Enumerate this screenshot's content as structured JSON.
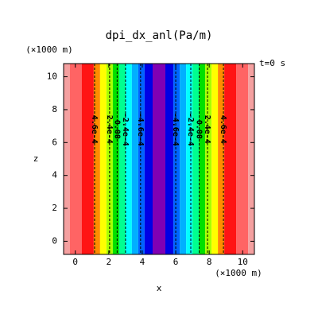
{
  "chart_data": {
    "type": "contour",
    "title": "dpi_dx_anl(Pa/m)",
    "x_label": "x",
    "y_label": "z",
    "x_unit": "(×1000 m)",
    "y_unit": "(×1000 m)",
    "time_label": "t=0 s",
    "xlim": [
      -0.7,
      10.7
    ],
    "ylim": [
      -0.8,
      10.8
    ],
    "xticks": [
      0,
      2,
      4,
      6,
      8,
      10
    ],
    "yticks": [
      0,
      2,
      4,
      6,
      8,
      10
    ],
    "bands": [
      {
        "x0": -0.7,
        "x1": -0.33,
        "color": "#f4a0a0"
      },
      {
        "x0": -0.33,
        "x1": 0.38,
        "color": "#ff6464"
      },
      {
        "x0": 0.38,
        "x1": 1.1,
        "color": "#ff1414"
      },
      {
        "x0": 1.1,
        "x1": 1.48,
        "color": "#ff8c00"
      },
      {
        "x0": 1.48,
        "x1": 1.86,
        "color": "#ffff00"
      },
      {
        "x0": 1.86,
        "x1": 2.24,
        "color": "#a8ff00"
      },
      {
        "x0": 2.24,
        "x1": 2.62,
        "color": "#00e000"
      },
      {
        "x0": 2.62,
        "x1": 3.0,
        "color": "#00ff90"
      },
      {
        "x0": 3.0,
        "x1": 3.38,
        "color": "#00ffff"
      },
      {
        "x0": 3.38,
        "x1": 3.76,
        "color": "#00b0ff"
      },
      {
        "x0": 3.76,
        "x1": 4.14,
        "color": "#0064ff"
      },
      {
        "x0": 4.14,
        "x1": 4.62,
        "color": "#0000e6"
      },
      {
        "x0": 4.62,
        "x1": 5.38,
        "color": "#8000b4"
      },
      {
        "x0": 5.38,
        "x1": 5.86,
        "color": "#0000e6"
      },
      {
        "x0": 5.86,
        "x1": 6.24,
        "color": "#0064ff"
      },
      {
        "x0": 6.24,
        "x1": 6.62,
        "color": "#00b0ff"
      },
      {
        "x0": 6.62,
        "x1": 7.0,
        "color": "#00ffff"
      },
      {
        "x0": 7.0,
        "x1": 7.38,
        "color": "#00ff90"
      },
      {
        "x0": 7.38,
        "x1": 7.76,
        "color": "#00e000"
      },
      {
        "x0": 7.76,
        "x1": 8.14,
        "color": "#a8ff00"
      },
      {
        "x0": 8.14,
        "x1": 8.52,
        "color": "#ffff00"
      },
      {
        "x0": 8.52,
        "x1": 8.9,
        "color": "#ff8c00"
      },
      {
        "x0": 8.9,
        "x1": 9.62,
        "color": "#ff1414"
      },
      {
        "x0": 9.62,
        "x1": 10.33,
        "color": "#ff6464"
      },
      {
        "x0": 10.33,
        "x1": 10.7,
        "color": "#f4a0a0"
      }
    ],
    "contours": [
      {
        "x": 1.15,
        "z": 6.8,
        "label": "4.6e-4"
      },
      {
        "x": 2.05,
        "z": 6.8,
        "label": "2.4e-4"
      },
      {
        "x": 2.5,
        "z": 6.8,
        "label": "0.00"
      },
      {
        "x": 3.0,
        "z": 6.8,
        "label": "-2.4e-4"
      },
      {
        "x": 3.9,
        "z": 6.8,
        "label": "-4.6e-4"
      },
      {
        "x": 6.0,
        "z": 6.8,
        "label": "-4.6e-4"
      },
      {
        "x": 6.9,
        "z": 6.8,
        "label": "-2.4e-4"
      },
      {
        "x": 7.4,
        "z": 6.8,
        "label": "0.00"
      },
      {
        "x": 7.9,
        "z": 6.8,
        "label": "2.4e-4"
      },
      {
        "x": 8.85,
        "z": 6.8,
        "label": "4.6e-4"
      }
    ]
  }
}
